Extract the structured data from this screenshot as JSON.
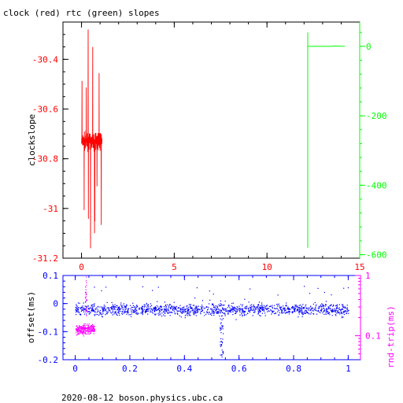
{
  "title": "clock (red) rtc (green) slopes",
  "footer": "2020-08-12 boson.physics.ubc.ca",
  "colors": {
    "clock": "#ff0000",
    "rtc": "#00ff00",
    "offset": "#0000ff",
    "rndtrip": "#ff00ff",
    "axis": "#000000"
  },
  "chart_data": [
    {
      "type": "line",
      "title": "clock (red) rtc (green) slopes",
      "xlabel": "",
      "ylabel": "clockslope",
      "xlim": [
        -1,
        15
      ],
      "ylim": [
        -31.2,
        -30.25
      ],
      "y2lim": [
        -610,
        70
      ],
      "grid": false,
      "x_ticks": [
        "0",
        "5",
        "10",
        "15"
      ],
      "y_ticks": [
        "-30.4",
        "-30.6",
        "-30.8",
        "-31",
        "-31.2"
      ],
      "y2_ticks": [
        "0",
        "-200",
        "-400",
        "-600"
      ],
      "series": [
        {
          "name": "clock",
          "axis": "left",
          "x_range": [
            0.0,
            1.1
          ],
          "center": -30.73,
          "band": 0.05,
          "max": -30.28,
          "min": -31.16
        },
        {
          "name": "rtc",
          "axis": "right",
          "x": [
            12.2,
            12.2,
            12.2,
            12.35,
            13.5,
            13.6,
            14.2
          ],
          "y": [
            -580,
            40,
            0,
            0,
            0,
            1,
            0
          ]
        }
      ]
    },
    {
      "type": "scatter",
      "xlabel": "",
      "ylabel": "offset(ms)",
      "y2label": "rnd-trip(ms)",
      "xlim": [
        -0.045,
        1.045
      ],
      "ylim": [
        -0.2,
        0.1
      ],
      "y2_scale": "log",
      "y2lim": [
        0.04,
        1.0
      ],
      "x_ticks": [
        "0",
        "0.2",
        "0.4",
        "0.6",
        "0.8",
        "1"
      ],
      "y_ticks": [
        "0.1",
        "0",
        "-0.1",
        "-0.2"
      ],
      "y2_ticks": [
        "1",
        "0.1"
      ],
      "series": [
        {
          "name": "offset",
          "axis": "left",
          "x_range": [
            0.0,
            1.0
          ],
          "center": -0.02,
          "band": 0.03,
          "dip": {
            "x": 0.535,
            "min": -0.19
          }
        },
        {
          "name": "rnd-trip",
          "axis": "right",
          "x_range": [
            0.0,
            0.07
          ],
          "center": 0.13,
          "spike_max": 1.0
        }
      ]
    }
  ]
}
